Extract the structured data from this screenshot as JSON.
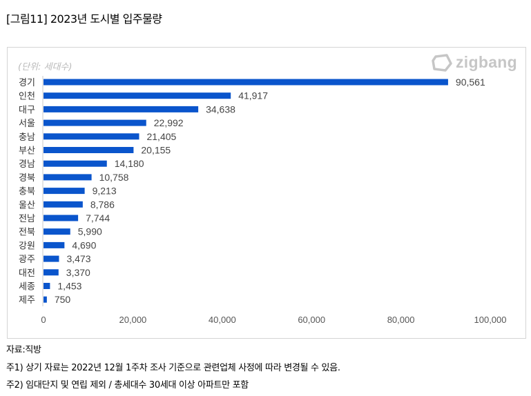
{
  "figure": {
    "title": "[그림11] 2023년  도시별  입주물량",
    "logo_text": "zigbang",
    "logo_icon": "zigbang-logo-icon"
  },
  "chart_data": {
    "type": "bar",
    "orientation": "horizontal",
    "title": "",
    "unit_label": "(단위: 세대수)",
    "categories": [
      "경기",
      "인천",
      "대구",
      "서울",
      "충남",
      "부산",
      "경남",
      "경북",
      "충북",
      "울산",
      "전남",
      "전북",
      "강원",
      "광주",
      "대전",
      "세종",
      "제주"
    ],
    "values": [
      90561,
      41917,
      34638,
      22992,
      21405,
      20155,
      14180,
      10758,
      9213,
      8786,
      7744,
      5990,
      4690,
      3473,
      3370,
      1453,
      750
    ],
    "value_labels": [
      "90,561",
      "41,917",
      "34,638",
      "22,992",
      "21,405",
      "20,155",
      "14,180",
      "10,758",
      "9,213",
      "8,786",
      "7,744",
      "5,990",
      "4,690",
      "3,473",
      "3,370",
      "1,453",
      "750"
    ],
    "xlim": [
      0,
      100000
    ],
    "xticks": [
      0,
      20000,
      40000,
      60000,
      80000,
      100000
    ],
    "xtick_labels": [
      "0",
      "20,000",
      "40,000",
      "60,000",
      "80,000",
      "100,000"
    ],
    "xlabel": "",
    "ylabel": "",
    "grid": false,
    "bar_color": "#0a55cc"
  },
  "notes": {
    "source": "자료:직방",
    "note1": "주1) 상기 자료는 2022년 12월 1주차 조사 기준으로 관련업체 사정에 따라 변경될 수 있음.",
    "note2": "주2) 임대단지 및 연립 제외 / 총세대수 30세대 이상 아파트만 포함"
  }
}
